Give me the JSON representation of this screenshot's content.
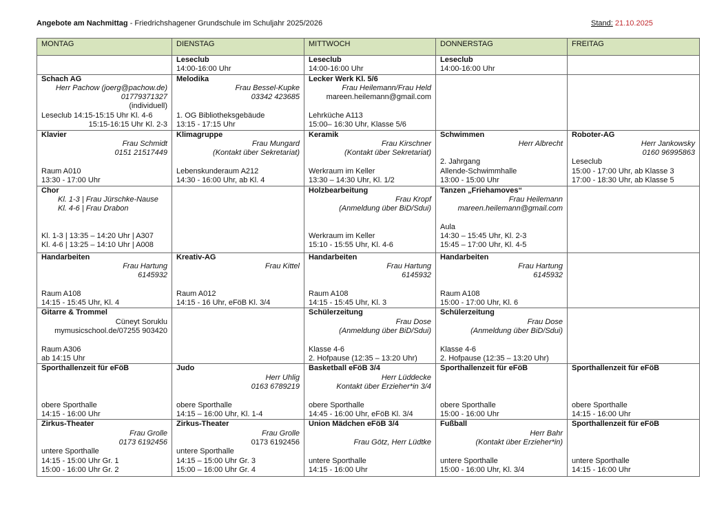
{
  "header": {
    "title_bold": "Angebote am Nachmittag",
    "title_rest": " - Friedrichshagener Grundschule im Schuljahr 2025/2026",
    "stand_label": "Stand:",
    "stand_date": "21.10.2025"
  },
  "colors": {
    "header_bg": "#d7e4bd",
    "date": "#c0282d"
  },
  "days": [
    "MONTAG",
    "DIENSTAG",
    "MITTWOCH",
    "DONNERSTAG",
    "FREITAG"
  ],
  "rows": [
    [
      [],
      [
        [
          "b",
          "Leseclub"
        ],
        [
          "l",
          "14:00-16:00 Uhr"
        ]
      ],
      [
        [
          "b",
          "Leseclub"
        ],
        [
          "l",
          "14:00-16:00 Uhr"
        ]
      ],
      [
        [
          "b",
          "Leseclub"
        ],
        [
          "l",
          "14:00-16:00 Uhr"
        ]
      ],
      []
    ],
    [
      [
        [
          "b",
          "Schach AG"
        ],
        [
          "ir",
          "Herr Pachow (joerg@pachow.de)"
        ],
        [
          "ir",
          "01779371327"
        ],
        [
          "r",
          "(individuell)"
        ],
        [
          "l",
          "Leseclub 14:15-15:15 Uhr Kl. 4-6"
        ],
        [
          "r",
          "15:15-16:15 Uhr Kl. 2-3"
        ]
      ],
      [
        [
          "b",
          "Melodika"
        ],
        [
          "ir",
          "Frau Bessel-Kupke"
        ],
        [
          "ir",
          "03342 423685"
        ],
        [
          "l",
          ""
        ],
        [
          "l",
          "1. OG Bibliotheksgebäude"
        ],
        [
          "l",
          "13:15 - 17:15 Uhr"
        ]
      ],
      [
        [
          "b",
          "Lecker Werk Kl. 5/6"
        ],
        [
          "ir",
          "Frau Heilemann/Frau Held"
        ],
        [
          "r",
          "mareen.heilemann@gmail.com"
        ],
        [
          "l",
          ""
        ],
        [
          "l",
          "Lehrküche A113"
        ],
        [
          "l",
          "15:00– 16:30 Uhr, Klasse 5/6"
        ]
      ],
      [],
      []
    ],
    [
      [
        [
          "b",
          "Klavier"
        ],
        [
          "ir",
          "Frau Schmidt"
        ],
        [
          "ir",
          "0151 21517449"
        ],
        [
          "l",
          ""
        ],
        [
          "l",
          "Raum A010"
        ],
        [
          "l",
          "13:30 - 17:00 Uhr"
        ]
      ],
      [
        [
          "b",
          "Klimagruppe"
        ],
        [
          "ir",
          "Frau Mungard"
        ],
        [
          "ir",
          "(Kontakt über Sekretariat)"
        ],
        [
          "l",
          ""
        ],
        [
          "l",
          "Lebenskunderaum A212"
        ],
        [
          "l",
          "14:30 - 16:00 Uhr, ab Kl. 4"
        ]
      ],
      [
        [
          "b",
          "Keramik"
        ],
        [
          "ir",
          "Frau Kirschner"
        ],
        [
          "ir",
          "(Kontakt über Sekretariat)"
        ],
        [
          "l",
          ""
        ],
        [
          "l",
          "Werkraum im Keller"
        ],
        [
          "l",
          "13:30 – 14:30 Uhr, Kl. 1/2"
        ]
      ],
      [
        [
          "b",
          "Schwimmen"
        ],
        [
          "ir",
          "Herr Albrecht"
        ],
        [
          "l",
          ""
        ],
        [
          "l",
          "2. Jahrgang"
        ],
        [
          "l",
          "Allende-Schwimmhalle"
        ],
        [
          "l",
          "13:00 - 15:00 Uhr"
        ]
      ],
      [
        [
          "b",
          "Roboter-AG"
        ],
        [
          "ir",
          "Herr Jankowsky"
        ],
        [
          "ir",
          "0160 96995863"
        ],
        [
          "l",
          "Leseclub"
        ],
        [
          "l",
          "15:00 - 17:00 Uhr, ab Klasse 3"
        ],
        [
          "l",
          "17:00 - 18:30 Uhr, ab Klasse 5"
        ]
      ]
    ],
    [
      [
        [
          "b",
          "Chor"
        ],
        [
          "ii",
          "Kl. 1-3 | Frau Jürschke-Nause"
        ],
        [
          "ii",
          "Kl. 4-6 | Frau Drabon"
        ],
        [
          "l",
          ""
        ],
        [
          "l",
          ""
        ],
        [
          "l",
          "Kl. 1-3 | 13:35 – 14:20 Uhr | A307"
        ],
        [
          "l",
          "Kl. 4-6 | 13:25 – 14:10 Uhr | A008"
        ]
      ],
      [],
      [
        [
          "b",
          "Holzbearbeitung"
        ],
        [
          "ir",
          "Frau Kropf"
        ],
        [
          "ir",
          "(Anmeldung über BiD/Sdui)"
        ],
        [
          "l",
          ""
        ],
        [
          "l",
          ""
        ],
        [
          "l",
          "Werkraum im Keller"
        ],
        [
          "l",
          "15:10 - 15:55 Uhr, Kl. 4-6"
        ]
      ],
      [
        [
          "b",
          "Tanzen „Friehamoves“"
        ],
        [
          "ir",
          "Frau Heilemann"
        ],
        [
          "ir",
          "mareen.heilemann@gmail.com"
        ],
        [
          "l",
          ""
        ],
        [
          "l",
          "Aula"
        ],
        [
          "l",
          "14:30 – 15:45 Uhr, Kl. 2-3"
        ],
        [
          "l",
          "15:45 – 17:00 Uhr, Kl. 4-5"
        ]
      ],
      []
    ],
    [
      [
        [
          "b",
          "Handarbeiten"
        ],
        [
          "ir",
          "Frau Hartung"
        ],
        [
          "ir",
          "6145932"
        ],
        [
          "l",
          ""
        ],
        [
          "l",
          "Raum A108"
        ],
        [
          "l",
          "14:15 - 15:45 Uhr, Kl. 4"
        ]
      ],
      [
        [
          "b",
          "Kreativ-AG"
        ],
        [
          "ir",
          "Frau Kittel"
        ],
        [
          "l",
          ""
        ],
        [
          "l",
          ""
        ],
        [
          "l",
          "Raum A012"
        ],
        [
          "l",
          "14:15 - 16 Uhr, eFöB Kl. 3/4"
        ]
      ],
      [
        [
          "b",
          "Handarbeiten"
        ],
        [
          "ir",
          "Frau Hartung"
        ],
        [
          "ir",
          "6145932"
        ],
        [
          "l",
          ""
        ],
        [
          "l",
          "Raum A108"
        ],
        [
          "l",
          "14:15 - 15:45 Uhr, Kl. 3"
        ]
      ],
      [
        [
          "b",
          "Handarbeiten"
        ],
        [
          "ir",
          "Frau Hartung"
        ],
        [
          "ir",
          "6145932"
        ],
        [
          "l",
          ""
        ],
        [
          "l",
          "Raum A108"
        ],
        [
          "l",
          "15:00 - 17:00 Uhr, Kl. 6"
        ]
      ],
      []
    ],
    [
      [
        [
          "b",
          "Gitarre & Trommel"
        ],
        [
          "r",
          "Cüneyt Soruklu"
        ],
        [
          "r",
          "mymusicschool.de/07255 903420"
        ],
        [
          "l",
          ""
        ],
        [
          "l",
          "Raum A306"
        ],
        [
          "l",
          "ab 14:15 Uhr"
        ]
      ],
      [],
      [
        [
          "b",
          "Schülerzeitung"
        ],
        [
          "ir",
          "Frau Dose"
        ],
        [
          "ir",
          "(Anmeldung über BiD/Sdui)"
        ],
        [
          "l",
          ""
        ],
        [
          "l",
          "Klasse 4-6"
        ],
        [
          "l",
          "2. Hofpause (12:35 – 13:20 Uhr)"
        ]
      ],
      [
        [
          "b",
          " Schülerzeitung"
        ],
        [
          "ir",
          "Frau Dose"
        ],
        [
          "ir",
          "(Anmeldung über BiD/Sdui)"
        ],
        [
          "l",
          ""
        ],
        [
          "l",
          "Klasse 4-6"
        ],
        [
          "l",
          "2. Hofpause (12:35 – 13:20 Uhr)"
        ]
      ],
      []
    ],
    [
      [
        [
          "b",
          "Sporthallenzeit für eFöB"
        ],
        [
          "l",
          ""
        ],
        [
          "l",
          ""
        ],
        [
          "l",
          ""
        ],
        [
          "l",
          "obere Sporthalle"
        ],
        [
          "l",
          "14:15 - 16:00 Uhr"
        ]
      ],
      [
        [
          "b",
          "Judo"
        ],
        [
          "ir",
          "Herr Uhlig"
        ],
        [
          "ir",
          "0163 6789219"
        ],
        [
          "l",
          ""
        ],
        [
          "l",
          "obere Sporthalle"
        ],
        [
          "l",
          "14:15 – 16:00 Uhr, Kl. 1-4"
        ]
      ],
      [
        [
          "b",
          "Basketball eFöB 3/4"
        ],
        [
          "ir",
          "Herr Lüddecke"
        ],
        [
          "ir",
          "Kontakt über Erzieher*in 3/4"
        ],
        [
          "l",
          ""
        ],
        [
          "l",
          "obere Sporthalle"
        ],
        [
          "l",
          "14:45 - 16:00 Uhr, eFöB Kl. 3/4"
        ]
      ],
      [
        [
          "b",
          "Sporthallenzeit für eFöB"
        ],
        [
          "l",
          ""
        ],
        [
          "l",
          ""
        ],
        [
          "l",
          ""
        ],
        [
          "l",
          "obere Sporthalle"
        ],
        [
          "l",
          "15:00 - 16:00 Uhr"
        ]
      ],
      [
        [
          "b",
          "Sporthallenzeit für eFöB"
        ],
        [
          "l",
          ""
        ],
        [
          "l",
          ""
        ],
        [
          "l",
          ""
        ],
        [
          "l",
          "obere Sporthalle"
        ],
        [
          "l",
          "14:15 - 16:00 Uhr"
        ]
      ]
    ],
    [
      [
        [
          "b",
          "Zirkus-Theater"
        ],
        [
          "ir",
          "Frau Grolle"
        ],
        [
          "ir",
          "0173 6192456"
        ],
        [
          "l",
          "untere Sporthalle"
        ],
        [
          "l",
          "14:15 - 15:00 Uhr Gr. 1"
        ],
        [
          "l",
          "15:00 - 16:00 Uhr Gr. 2"
        ]
      ],
      [
        [
          "b",
          "Zirkus-Theater"
        ],
        [
          "ir",
          "Frau Grolle"
        ],
        [
          "r",
          "0173 6192456"
        ],
        [
          "l",
          "untere Sporthalle"
        ],
        [
          "l",
          "14:15 – 15:00 Uhr Gr. 3"
        ],
        [
          "l",
          "15:00 – 16:00 Uhr Gr. 4"
        ]
      ],
      [
        [
          "b",
          "Union Mädchen eFöB 3/4"
        ],
        [
          "l",
          ""
        ],
        [
          "ir",
          "Frau Götz, Herr Lüdtke"
        ],
        [
          "l",
          ""
        ],
        [
          "l",
          "untere Sporthalle"
        ],
        [
          "l",
          "14:15 - 16:00 Uhr"
        ]
      ],
      [
        [
          "b",
          "Fußball"
        ],
        [
          "ir",
          "Herr Bahr"
        ],
        [
          "ir",
          "(Kontakt über Erzieher*in)"
        ],
        [
          "l",
          ""
        ],
        [
          "l",
          "untere Sporthalle"
        ],
        [
          "l",
          "15:00 - 16:00 Uhr, Kl. 3/4"
        ]
      ],
      [
        [
          "b",
          "Sporthallenzeit für eFöB"
        ],
        [
          "l",
          ""
        ],
        [
          "l",
          ""
        ],
        [
          "l",
          ""
        ],
        [
          "l",
          "untere Sporthalle"
        ],
        [
          "l",
          "14:15 - 16:00 Uhr"
        ]
      ]
    ]
  ]
}
